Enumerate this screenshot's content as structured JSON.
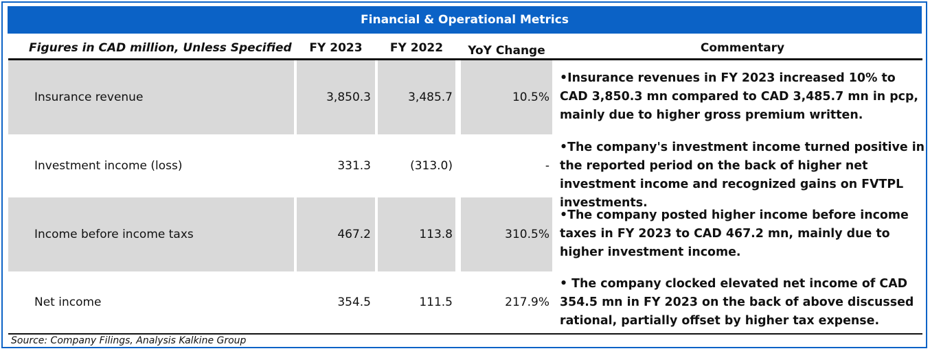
{
  "title": "Financial & Operational Metrics",
  "header": {
    "label": "Figures in CAD million, Unless Specified",
    "fy2023": "FY 2023",
    "fy2022": "FY 2022",
    "yoy": "YoY Change",
    "commentary": "Commentary"
  },
  "rows": [
    {
      "label": "Insurance revenue",
      "fy2023": "3,850.3",
      "fy2022": "3,485.7",
      "yoy": "10.5%",
      "commentary": "•Insurance revenues in FY 2023 increased 10% to CAD 3,850.3 mn compared to CAD 3,485.7 mn in pcp, mainly due to higher gross premium written."
    },
    {
      "label": "Investment income (loss)",
      "fy2023": "331.3",
      "fy2022": "(313.0)",
      "yoy": "-",
      "commentary": "•The company's investment income turned positive in the reported period on the back of higher net investment income  and recognized gains on FVTPL investments."
    },
    {
      "label": "Income before income taxs",
      "fy2023": "467.2",
      "fy2022": "113.8",
      "yoy": "310.5%",
      "commentary": "•The company posted higher income before income taxes in FY 2023 to CAD 467.2 mn, mainly due to higher investment income."
    },
    {
      "label": "Net income",
      "fy2023": "354.5",
      "fy2022": "111.5",
      "yoy": "217.9%",
      "commentary": "• The company clocked elevated net income of CAD 354.5 mn in FY 2023 on the back of above discussed rational, partially offset by higher tax expense."
    }
  ],
  "source": "Source: Company Filings, Analysis Kalkine Group"
}
